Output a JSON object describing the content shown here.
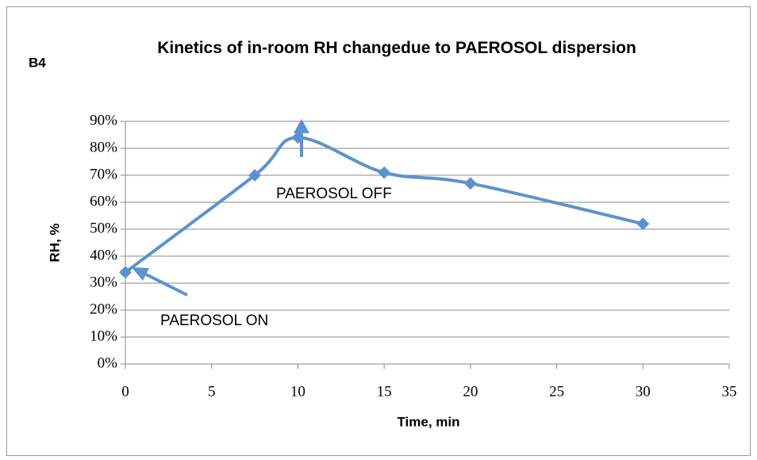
{
  "chart_data": {
    "type": "line",
    "title": "Kinetics of in-room RH  changedue to PAEROSOL dispersion",
    "annotations": [
      "B4",
      "PAEROSOL OFF",
      "PAEROSOL ON"
    ],
    "x_label": "Time, min",
    "y_label": "RH, %",
    "x": [
      0,
      7.5,
      10,
      15,
      20,
      30
    ],
    "series": [
      {
        "name": "RH",
        "color": "#5b93cf",
        "values": [
          34,
          70,
          84,
          71,
          67,
          52
        ]
      }
    ],
    "xlim": [
      0,
      35
    ],
    "xticks": [
      0,
      5,
      10,
      15,
      20,
      25,
      30,
      35
    ],
    "ylim": [
      0,
      90
    ],
    "yticks": [
      {
        "value": 0,
        "label": "0%"
      },
      {
        "value": 10,
        "label": "10%"
      },
      {
        "value": 20,
        "label": "20%"
      },
      {
        "value": 30,
        "label": "30%"
      },
      {
        "value": 40,
        "label": "40%"
      },
      {
        "value": 50,
        "label": "50%"
      },
      {
        "value": 60,
        "label": "60%"
      },
      {
        "value": 70,
        "label": "70%"
      },
      {
        "value": 80,
        "label": "80%"
      },
      {
        "value": 90,
        "label": "90%"
      }
    ],
    "grid": true,
    "smooth": true
  }
}
